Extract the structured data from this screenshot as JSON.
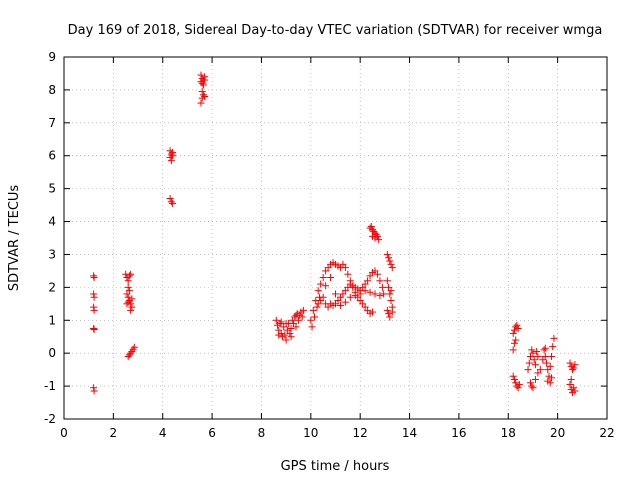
{
  "chart_data": {
    "type": "scatter",
    "title": "Day 169 of 2018, Sidereal Day-to-day VTEC variation (SDTVAR) for receiver wmga",
    "xlabel": "GPS time / hours",
    "ylabel": "SDTVAR / TECUs",
    "xlim": [
      0,
      22
    ],
    "ylim": [
      -2,
      9
    ],
    "xticks": [
      "0",
      "2",
      "4",
      "6",
      "8",
      "10",
      "12",
      "14",
      "16",
      "18",
      "20",
      "22"
    ],
    "yticks": [
      "-2",
      "-1",
      "0",
      "1",
      "2",
      "3",
      "4",
      "5",
      "6",
      "7",
      "8",
      "9"
    ],
    "grid": true,
    "marker": "+",
    "color": "#ff0000",
    "series": [
      {
        "name": "SDTVAR",
        "points": [
          [
            1.2,
            2.35
          ],
          [
            1.22,
            2.3
          ],
          [
            1.2,
            1.8
          ],
          [
            1.22,
            1.7
          ],
          [
            1.2,
            1.4
          ],
          [
            1.22,
            1.3
          ],
          [
            1.2,
            0.75
          ],
          [
            1.22,
            0.72
          ],
          [
            1.2,
            -1.05
          ],
          [
            1.22,
            -1.15
          ],
          [
            2.5,
            2.4
          ],
          [
            2.55,
            2.3
          ],
          [
            2.6,
            2.2
          ],
          [
            2.65,
            2.35
          ],
          [
            2.7,
            2.4
          ],
          [
            2.6,
            2.0
          ],
          [
            2.65,
            1.9
          ],
          [
            2.55,
            1.8
          ],
          [
            2.6,
            1.7
          ],
          [
            2.65,
            1.6
          ],
          [
            2.55,
            1.5
          ],
          [
            2.7,
            1.5
          ],
          [
            2.75,
            1.4
          ],
          [
            2.7,
            1.3
          ],
          [
            2.75,
            1.65
          ],
          [
            2.6,
            1.55
          ],
          [
            2.6,
            -0.1
          ],
          [
            2.65,
            -0.05
          ],
          [
            2.7,
            0.0
          ],
          [
            2.75,
            0.05
          ],
          [
            2.8,
            0.12
          ],
          [
            2.85,
            0.18
          ],
          [
            4.3,
            6.15
          ],
          [
            4.35,
            6.05
          ],
          [
            4.4,
            6.1
          ],
          [
            4.3,
            5.95
          ],
          [
            4.35,
            5.85
          ],
          [
            4.4,
            6.0
          ],
          [
            4.3,
            4.7
          ],
          [
            4.35,
            4.6
          ],
          [
            4.4,
            4.55
          ],
          [
            5.55,
            8.45
          ],
          [
            5.6,
            8.35
          ],
          [
            5.65,
            8.3
          ],
          [
            5.7,
            8.4
          ],
          [
            5.55,
            8.25
          ],
          [
            5.6,
            8.2
          ],
          [
            5.65,
            8.15
          ],
          [
            5.7,
            8.3
          ],
          [
            5.6,
            7.95
          ],
          [
            5.65,
            7.85
          ],
          [
            5.6,
            7.75
          ],
          [
            5.55,
            7.6
          ],
          [
            5.7,
            7.8
          ],
          [
            8.6,
            1.0
          ],
          [
            8.65,
            0.85
          ],
          [
            8.7,
            0.7
          ],
          [
            8.75,
            0.9
          ],
          [
            8.8,
            0.6
          ],
          [
            8.85,
            0.5
          ],
          [
            8.9,
            0.8
          ],
          [
            8.95,
            0.55
          ],
          [
            9.0,
            0.4
          ],
          [
            9.05,
            0.7
          ],
          [
            9.1,
            0.9
          ],
          [
            9.15,
            0.6
          ],
          [
            9.2,
            0.75
          ],
          [
            9.25,
            1.0
          ],
          [
            9.3,
            0.9
          ],
          [
            9.35,
            1.1
          ],
          [
            9.4,
            0.8
          ],
          [
            9.45,
            1.2
          ],
          [
            9.5,
            1.0
          ],
          [
            9.55,
            1.15
          ],
          [
            9.6,
            1.25
          ],
          [
            9.65,
            1.1
          ],
          [
            9.7,
            1.3
          ],
          [
            8.7,
            0.55
          ],
          [
            8.8,
            0.95
          ],
          [
            9.0,
            0.9
          ],
          [
            9.2,
            0.5
          ],
          [
            9.4,
            1.15
          ],
          [
            10.0,
            1.0
          ],
          [
            10.05,
            0.8
          ],
          [
            10.1,
            1.3
          ],
          [
            10.15,
            1.1
          ],
          [
            10.2,
            1.6
          ],
          [
            10.25,
            1.4
          ],
          [
            10.3,
            1.9
          ],
          [
            10.35,
            1.7
          ],
          [
            10.4,
            2.1
          ],
          [
            10.5,
            2.3
          ],
          [
            10.6,
            2.5
          ],
          [
            10.7,
            2.6
          ],
          [
            10.8,
            2.7
          ],
          [
            10.9,
            2.75
          ],
          [
            11.0,
            2.7
          ],
          [
            11.1,
            2.65
          ],
          [
            11.2,
            2.6
          ],
          [
            11.3,
            2.7
          ],
          [
            11.4,
            2.6
          ],
          [
            11.5,
            2.4
          ],
          [
            11.6,
            2.2
          ],
          [
            11.7,
            2.0
          ],
          [
            11.8,
            1.85
          ],
          [
            11.9,
            1.7
          ],
          [
            12.0,
            1.6
          ],
          [
            12.1,
            1.5
          ],
          [
            12.2,
            1.4
          ],
          [
            12.3,
            1.3
          ],
          [
            12.4,
            1.2
          ],
          [
            12.5,
            1.25
          ],
          [
            10.3,
            1.5
          ],
          [
            10.4,
            1.6
          ],
          [
            10.5,
            1.7
          ],
          [
            10.6,
            1.5
          ],
          [
            10.7,
            1.4
          ],
          [
            10.8,
            1.5
          ],
          [
            10.9,
            1.45
          ],
          [
            11.0,
            1.5
          ],
          [
            11.1,
            1.6
          ],
          [
            11.2,
            1.7
          ],
          [
            11.3,
            1.8
          ],
          [
            11.4,
            1.9
          ],
          [
            11.5,
            2.0
          ],
          [
            11.6,
            2.1
          ],
          [
            11.7,
            2.05
          ],
          [
            11.8,
            2.0
          ],
          [
            11.9,
            1.95
          ],
          [
            12.0,
            1.9
          ],
          [
            12.1,
            2.0
          ],
          [
            12.2,
            2.1
          ],
          [
            12.3,
            2.2
          ],
          [
            12.4,
            2.35
          ],
          [
            12.5,
            2.45
          ],
          [
            12.6,
            2.5
          ],
          [
            12.7,
            2.4
          ],
          [
            12.8,
            2.2
          ],
          [
            12.9,
            2.0
          ],
          [
            12.95,
            1.8
          ],
          [
            10.6,
            2.05
          ],
          [
            10.8,
            2.3
          ],
          [
            11.0,
            1.8
          ],
          [
            11.2,
            1.45
          ],
          [
            11.4,
            1.55
          ],
          [
            11.6,
            1.7
          ],
          [
            11.8,
            1.75
          ],
          [
            12.0,
            1.8
          ],
          [
            12.2,
            1.9
          ],
          [
            12.4,
            1.85
          ],
          [
            12.6,
            1.8
          ],
          [
            12.8,
            1.75
          ],
          [
            12.4,
            3.8
          ],
          [
            12.45,
            3.85
          ],
          [
            12.5,
            3.75
          ],
          [
            12.55,
            3.7
          ],
          [
            12.6,
            3.65
          ],
          [
            12.65,
            3.6
          ],
          [
            12.7,
            3.55
          ],
          [
            12.75,
            3.45
          ],
          [
            12.5,
            3.55
          ],
          [
            12.6,
            3.5
          ],
          [
            13.1,
            3.0
          ],
          [
            13.15,
            2.9
          ],
          [
            13.2,
            2.8
          ],
          [
            13.25,
            2.7
          ],
          [
            13.3,
            2.6
          ],
          [
            13.1,
            2.2
          ],
          [
            13.15,
            2.0
          ],
          [
            13.2,
            1.8
          ],
          [
            13.25,
            1.6
          ],
          [
            13.3,
            1.4
          ],
          [
            13.1,
            1.3
          ],
          [
            13.15,
            1.2
          ],
          [
            13.2,
            1.1
          ],
          [
            13.3,
            1.25
          ],
          [
            13.25,
            1.9
          ],
          [
            18.2,
            0.6
          ],
          [
            18.25,
            0.7
          ],
          [
            18.3,
            0.8
          ],
          [
            18.35,
            0.85
          ],
          [
            18.4,
            0.75
          ],
          [
            18.25,
            0.3
          ],
          [
            18.3,
            0.4
          ],
          [
            18.2,
            0.1
          ],
          [
            18.2,
            -0.7
          ],
          [
            18.25,
            -0.8
          ],
          [
            18.3,
            -0.9
          ],
          [
            18.35,
            -1.0
          ],
          [
            18.4,
            -1.05
          ],
          [
            18.45,
            -0.95
          ],
          [
            18.8,
            -0.5
          ],
          [
            18.85,
            -0.3
          ],
          [
            18.9,
            -0.1
          ],
          [
            18.95,
            0.1
          ],
          [
            19.0,
            0.0
          ],
          [
            19.05,
            -0.2
          ],
          [
            19.1,
            -0.35
          ],
          [
            19.15,
            0.05
          ],
          [
            19.2,
            -0.1
          ],
          [
            18.9,
            -0.9
          ],
          [
            18.95,
            -1.0
          ],
          [
            19.0,
            -1.05
          ],
          [
            19.1,
            -0.8
          ],
          [
            19.2,
            -0.6
          ],
          [
            19.3,
            -0.5
          ],
          [
            19.4,
            -0.2
          ],
          [
            19.45,
            0.1
          ],
          [
            19.5,
            -0.1
          ],
          [
            19.55,
            -0.3
          ],
          [
            19.6,
            -0.5
          ],
          [
            19.65,
            -0.7
          ],
          [
            19.7,
            -0.4
          ],
          [
            19.75,
            -0.1
          ],
          [
            19.8,
            0.2
          ],
          [
            19.85,
            0.45
          ],
          [
            19.6,
            -0.85
          ],
          [
            19.7,
            -0.9
          ],
          [
            19.75,
            -0.75
          ],
          [
            19.5,
            0.15
          ],
          [
            20.5,
            -0.3
          ],
          [
            20.55,
            -0.4
          ],
          [
            20.6,
            -0.5
          ],
          [
            20.65,
            -0.45
          ],
          [
            20.7,
            -0.35
          ],
          [
            20.5,
            -0.95
          ],
          [
            20.55,
            -1.1
          ],
          [
            20.6,
            -1.2
          ],
          [
            20.65,
            -1.05
          ],
          [
            20.7,
            -1.15
          ],
          [
            20.55,
            -0.8
          ]
        ]
      }
    ]
  }
}
